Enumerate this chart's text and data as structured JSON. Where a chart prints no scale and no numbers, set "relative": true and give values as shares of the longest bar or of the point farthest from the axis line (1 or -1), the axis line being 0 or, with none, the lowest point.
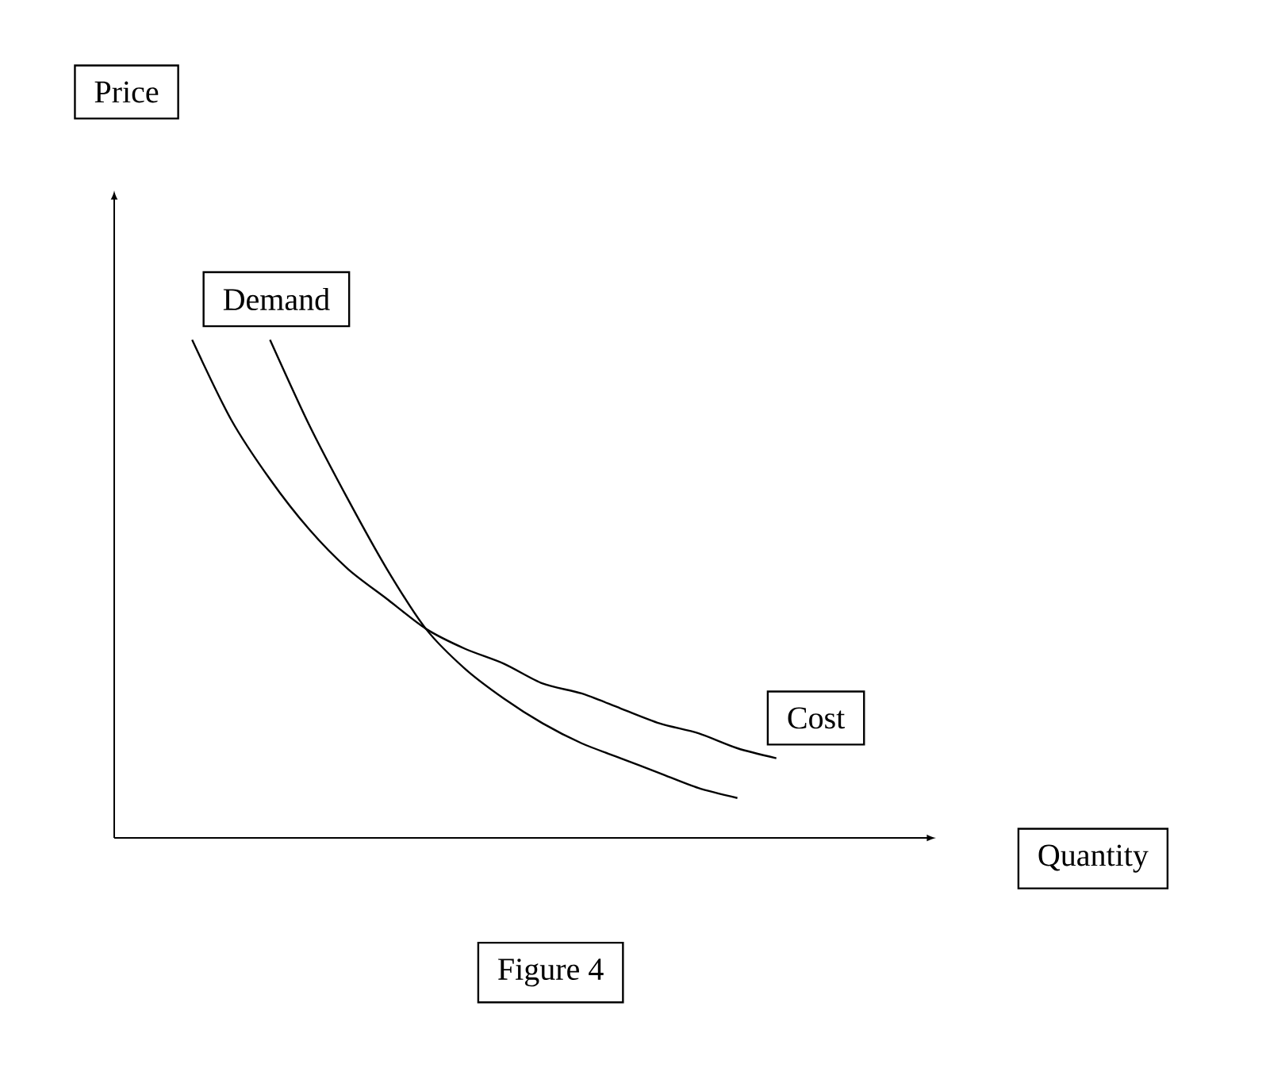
{
  "chart_data": {
    "type": "line",
    "relative": true,
    "annotations": [
      "Price",
      "Quantity",
      "Figure 4"
    ],
    "categories": [
      null,
      null,
      null,
      null,
      null,
      null,
      null,
      null,
      null,
      null,
      null,
      null,
      null,
      null,
      null,
      null
    ],
    "series": [
      {
        "name": "Demand",
        "color": "#000000",
        "values": [
          null,
          null,
          1,
          0.83,
          0.68,
          0.54,
          0.42,
          0.34,
          0.28,
          0.23,
          0.19,
          0.16,
          0.13,
          0.1,
          0.08,
          null
        ]
      },
      {
        "name": "Cost",
        "color": "#000000",
        "values": [
          1,
          0.84,
          0.72,
          0.62,
          0.54,
          0.48,
          0.42,
          0.38,
          0.35,
          0.31,
          0.29,
          0.26,
          0.23,
          0.21,
          0.18,
          0.16
        ]
      }
    ]
  }
}
